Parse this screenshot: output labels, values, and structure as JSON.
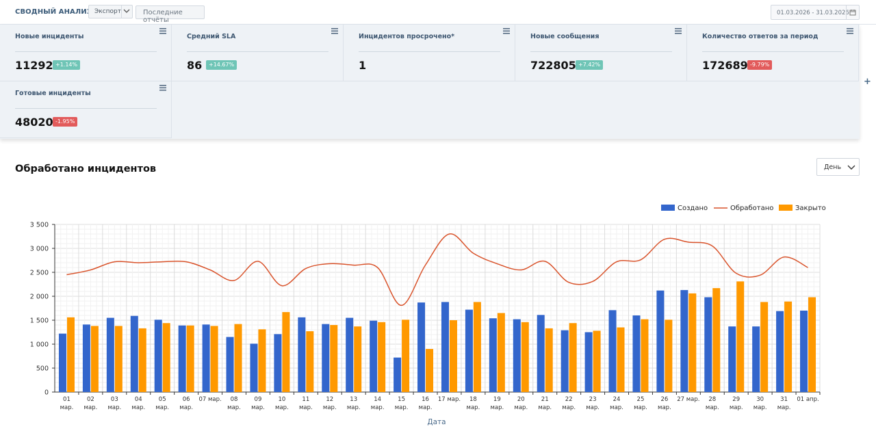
{
  "header": {
    "title": "СВОДНЫЙ АНАЛИЗ",
    "export_label": "Экспорт",
    "reports_label": "Последние отчёты",
    "date_range": "01.03.2026 - 31.03.2026"
  },
  "widgets": [
    {
      "title": "Новые инциденты",
      "value": "11292",
      "badge": "+1.14%",
      "trend": "up"
    },
    {
      "title": "Средний SLA",
      "value": "86",
      "badge": "+14.67%",
      "trend": "up"
    },
    {
      "title": "Инцидентов просрочено*",
      "value": "1",
      "badge": "",
      "trend": ""
    },
    {
      "title": "Новые сообщения",
      "value": "722805",
      "badge": "+7.42%",
      "trend": "up"
    },
    {
      "title": "Количество ответов за период",
      "value": "172689",
      "badge": "-9.79%",
      "trend": "down"
    },
    {
      "title": "Готовые инциденты",
      "value": "48020",
      "badge": "-1.95%",
      "trend": "down"
    }
  ],
  "add_widget_icon": "plus-icon",
  "chart_section": {
    "title": "Обработано инцидентов",
    "period_selected": "День"
  },
  "colors": {
    "created": "#3366cc",
    "processed": "#d9532b",
    "closed": "#ff9900",
    "badge_up": "#6fc5b6",
    "badge_down": "#e25b5b"
  },
  "chart_data": {
    "type": "bar",
    "xlabel": "Дата",
    "ylabel": "",
    "ylim": [
      0,
      3500
    ],
    "yticks": [
      "0",
      "500",
      "1 000",
      "1 500",
      "2 000",
      "2 500",
      "3 000",
      "3 500"
    ],
    "grid": true,
    "legend_position": "top-right",
    "categories": [
      "01 мар.",
      "02 мар.",
      "03 мар.",
      "04 мар.",
      "05 мар.",
      "06 мар.",
      "07 мар.",
      "08 мар.",
      "09 мар.",
      "10 мар.",
      "11 мар.",
      "12 мар.",
      "13 мар.",
      "14 мар.",
      "15 мар.",
      "16 мар.",
      "17 мар.",
      "18 мар.",
      "19 мар.",
      "20 мар.",
      "21 мар.",
      "22 мар.",
      "23 мар.",
      "24 мар.",
      "25 мар.",
      "26 мар.",
      "27 мар.",
      "28 мар.",
      "29 мар.",
      "30 мар.",
      "31 мар.",
      "01 апр."
    ],
    "series": [
      {
        "name": "Создано",
        "type": "bar",
        "values": [
          1220,
          1410,
          1550,
          1590,
          1510,
          1390,
          1410,
          1150,
          1010,
          1210,
          1560,
          1420,
          1550,
          1490,
          720,
          1870,
          1880,
          1720,
          1540,
          1520,
          1610,
          1290,
          1250,
          1710,
          1600,
          2120,
          2130,
          1980,
          1370,
          1370,
          1690,
          1700
        ]
      },
      {
        "name": "Обработано",
        "type": "line",
        "values": [
          2450,
          2550,
          2720,
          2700,
          2720,
          2720,
          2550,
          2330,
          2730,
          2220,
          2580,
          2680,
          2650,
          2600,
          1810,
          2650,
          3300,
          2900,
          2680,
          2550,
          2730,
          2290,
          2310,
          2720,
          2760,
          3190,
          3130,
          3050,
          2480,
          2440,
          2820,
          2600
        ]
      },
      {
        "name": "Закрыто",
        "type": "bar",
        "values": [
          1560,
          1380,
          1380,
          1330,
          1440,
          1390,
          1380,
          1420,
          1310,
          1670,
          1270,
          1400,
          1370,
          1460,
          1510,
          900,
          1500,
          1880,
          1650,
          1460,
          1330,
          1440,
          1280,
          1350,
          1520,
          1510,
          2060,
          2170,
          2310,
          1880,
          1890,
          1980
        ]
      }
    ]
  }
}
